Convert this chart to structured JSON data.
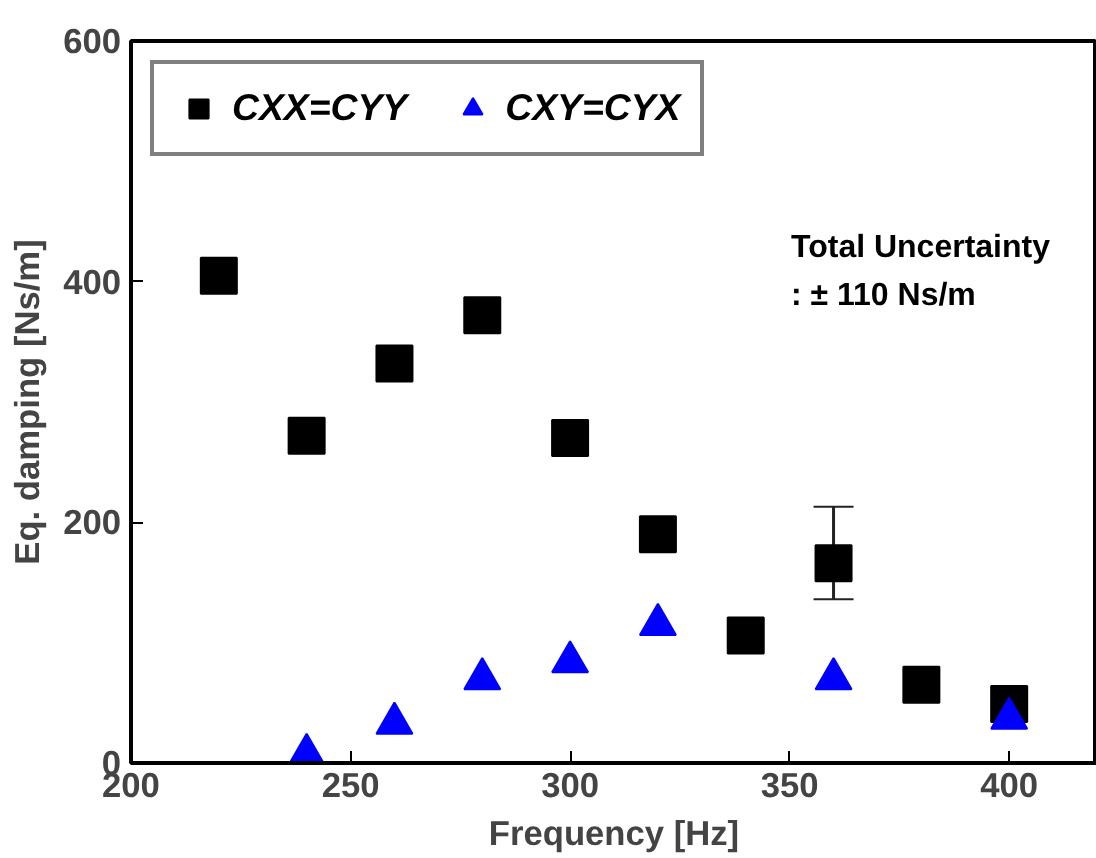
{
  "chart_data": {
    "type": "scatter",
    "xlabel": "Frequency [Hz]",
    "ylabel": "Eq. damping [Ns/m]",
    "x": [
      220,
      240,
      260,
      280,
      300,
      320,
      340,
      360,
      380,
      400
    ],
    "series": [
      {
        "name": "CXX=CYY",
        "color": "#000000",
        "marker": "square",
        "values": [
          405,
          272,
          332,
          372,
          270,
          190,
          106,
          166,
          65,
          49
        ],
        "errors": [
          null,
          null,
          null,
          null,
          null,
          null,
          null,
          [
            136,
            213
          ],
          null,
          null
        ]
      },
      {
        "name": "CXY=CYX",
        "color": "#0000ff",
        "marker": "triangle",
        "values": [
          null,
          7,
          33,
          70,
          84,
          115,
          null,
          70,
          null,
          37
        ]
      }
    ],
    "xlim": [
      200,
      420
    ],
    "xticks": [
      200,
      250,
      300,
      350,
      400
    ],
    "ylim": [
      0,
      600
    ],
    "yticks": [
      0,
      200,
      400,
      600
    ],
    "grid": false,
    "legend": "top left",
    "annotations": [
      "Total Uncertainty\n: ± 110 Ns/m"
    ]
  }
}
